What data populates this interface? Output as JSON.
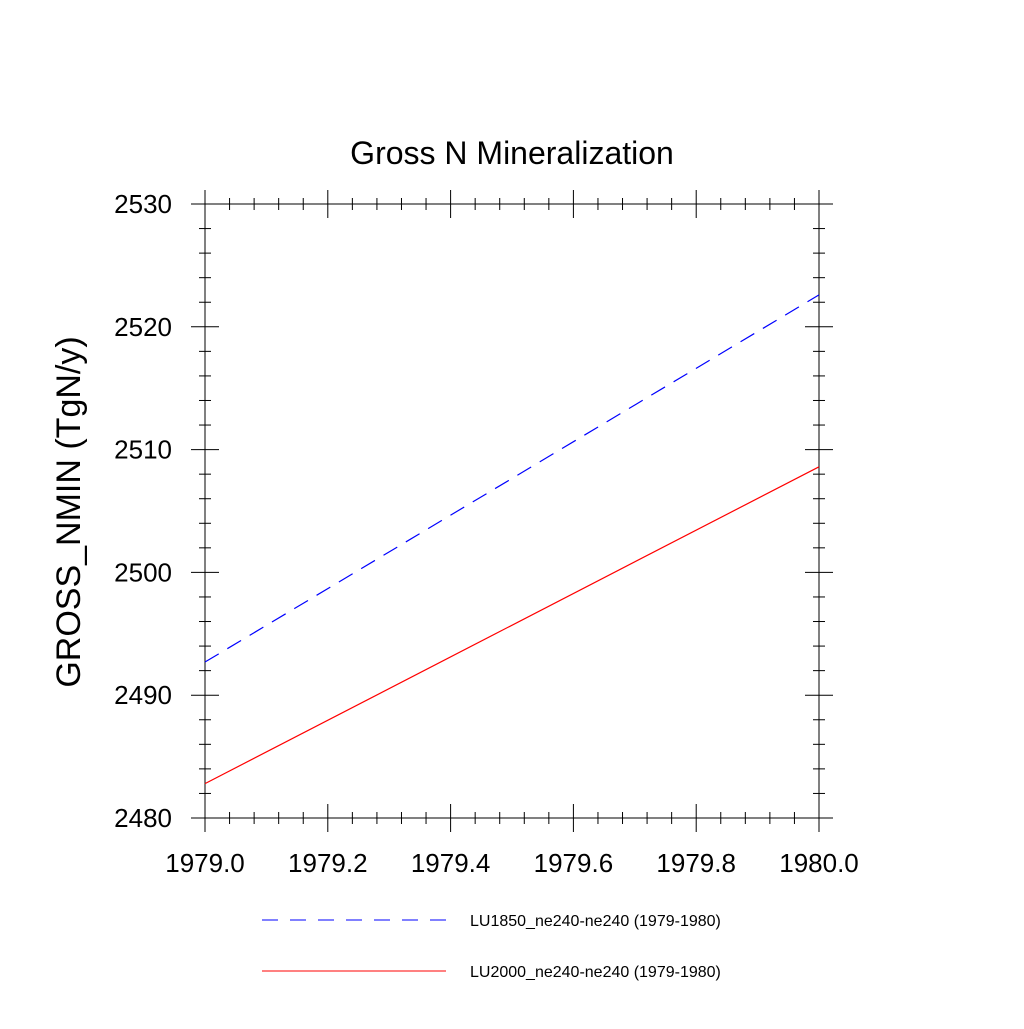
{
  "chart_data": {
    "type": "line",
    "title": "Gross N Mineralization",
    "xlabel": "",
    "ylabel": "GROSS_NMIN  (TgN/y)",
    "xlim": [
      1979.0,
      1980.0
    ],
    "ylim": [
      2480,
      2530
    ],
    "x_ticks": [
      1979.0,
      1979.2,
      1979.4,
      1979.6,
      1979.8,
      1980.0
    ],
    "x_tick_labels": [
      "1979.0",
      "1979.2",
      "1979.4",
      "1979.6",
      "1979.8",
      "1980.0"
    ],
    "y_ticks": [
      2480,
      2490,
      2500,
      2510,
      2520,
      2530
    ],
    "y_tick_labels": [
      "2480",
      "2490",
      "2500",
      "2510",
      "2520",
      "2530"
    ],
    "y_minor_step": 2,
    "x_minor_step": 0.04,
    "grid": false,
    "legend_position": "bottom",
    "series": [
      {
        "name": "LU1850_ne240-ne240 (1979-1980)",
        "color": "#0000ff",
        "line_style": "dashed",
        "x": [
          1979.0,
          1980.0
        ],
        "y": [
          2492.7,
          2522.6
        ]
      },
      {
        "name": "LU2000_ne240-ne240 (1979-1980)",
        "color": "#ff0000",
        "line_style": "solid",
        "x": [
          1979.0,
          1980.0
        ],
        "y": [
          2482.8,
          2508.6
        ]
      }
    ]
  }
}
